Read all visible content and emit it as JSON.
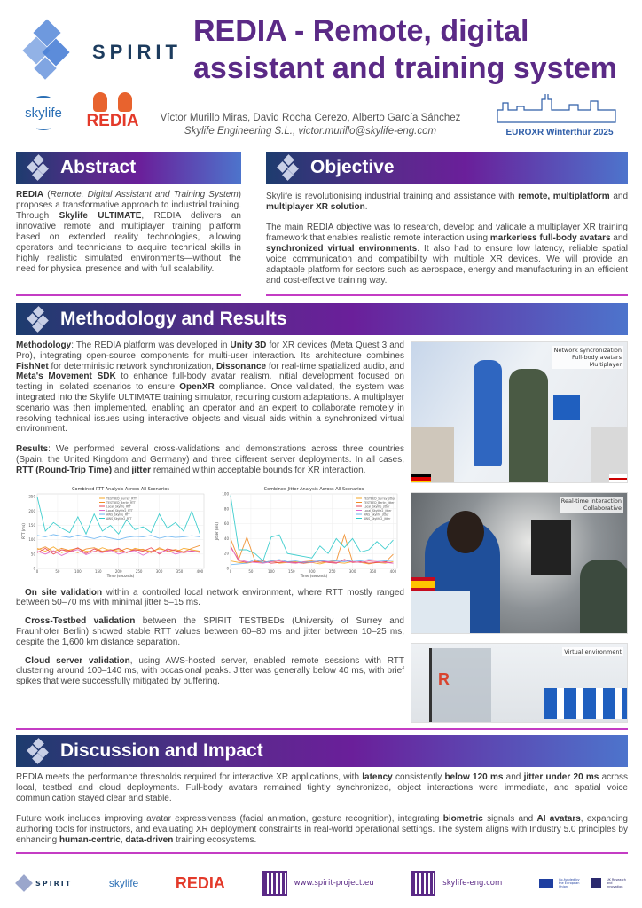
{
  "header": {
    "title": "REDIA - Remote, digital assistant and training system",
    "authors": "Víctor Murillo Miras, David Rocha Cerezo, Alberto García Sánchez",
    "affiliation": "Skylife Engineering S.L., victor.murillo@skylife-eng.com",
    "logos": {
      "spirit": "SPIRIT",
      "skylife": "skylife",
      "redia": "REDIA",
      "euroxr": "EUROXR Winterthur 2025"
    }
  },
  "colors": {
    "title": "#5b2a86",
    "accent_rule": "#c43cc4",
    "bar_start": "#1d3c6e",
    "bar_mid": "#6a1f9a",
    "bar_end": "#4d74cc"
  },
  "abstract": {
    "heading": "Abstract",
    "paragraphs": [
      [
        {
          "t": "REDIA",
          "b": true
        },
        {
          "t": " ("
        },
        {
          "t": "Remote, Digital Assistant and Training System",
          "i": true
        },
        {
          "t": ") proposes a transformative approach to industrial training. Through "
        },
        {
          "t": "Skylife ULTIMATE",
          "b": true
        },
        {
          "t": ", REDIA delivers an innovative remote and multiplayer training platform based on extended reality technologies, allowing operators and technicians to acquire technical skills in highly realistic simulated environments—without the need for physical presence and with full scalability."
        }
      ]
    ]
  },
  "objective": {
    "heading": "Objective",
    "paragraphs": [
      [
        {
          "t": "Skylife is revolutionising industrial training and assistance with "
        },
        {
          "t": "remote, multiplatform",
          "b": true
        },
        {
          "t": " and "
        },
        {
          "t": "multiplayer XR solution",
          "b": true
        },
        {
          "t": "."
        }
      ],
      [
        {
          "t": "The main REDIA objective was to research, develop and validate a multiplayer XR training framework that enables realistic remote interaction using "
        },
        {
          "t": "markerless full-body avatars",
          "b": true
        },
        {
          "t": " and "
        },
        {
          "t": "synchronized virtual environments",
          "b": true
        },
        {
          "t": ". It also had to ensure low latency, reliable spatial voice communication and compatibility with multiple XR devices. We will provide an adaptable platform for sectors such as aerospace, energy and manufacturing in an efficient and cost-effective training way."
        }
      ]
    ]
  },
  "methodology": {
    "heading": "Methodology and Results",
    "paragraphs": [
      [
        {
          "t": "Methodology",
          "b": true
        },
        {
          "t": ": The REDIA platform was developed in "
        },
        {
          "t": "Unity 3D",
          "b": true
        },
        {
          "t": " for XR devices (Meta Quest 3 and Pro), integrating open-source components for multi-user interaction. Its architecture combines "
        },
        {
          "t": "FishNet",
          "b": true
        },
        {
          "t": " for deterministic network synchronization, "
        },
        {
          "t": "Dissonance",
          "b": true
        },
        {
          "t": " for real-time spatialized audio, and "
        },
        {
          "t": "Meta's Movement SDK",
          "b": true
        },
        {
          "t": " to enhance full-body avatar realism. Initial development focused on testing in isolated scenarios to ensure "
        },
        {
          "t": "OpenXR",
          "b": true
        },
        {
          "t": " compliance. Once validated, the system was integrated into the Skylife ULTIMATE training simulator, requiring custom adaptations. A multiplayer scenario was then implemented, enabling an operator and an expert to collaborate remotely in resolving technical issues using interactive objects and visual aids within a synchronized virtual environment."
        }
      ],
      [
        {
          "t": "Results",
          "b": true
        },
        {
          "t": ": We performed several cross-validations and demonstrations across three countries (Spain, the United Kingdom and Germany) and three different server deployments. In all cases, "
        },
        {
          "t": "RTT (Round-Trip Time)",
          "b": true
        },
        {
          "t": " and "
        },
        {
          "t": "jitter",
          "b": true
        },
        {
          "t": " remained within acceptable bounds for XR interaction."
        }
      ]
    ],
    "validations": [
      [
        {
          "t": "On site validation",
          "b": true
        },
        {
          "t": " within a controlled local network environment, where RTT mostly ranged between 50–70 ms with minimal jitter 5–15 ms."
        }
      ],
      [
        {
          "t": "Cross-Testbed validation",
          "b": true
        },
        {
          "t": " between the SPIRIT TESTBEDs (University of Surrey and Fraunhofer Berlin) showed stable RTT values between 60–80 ms and jitter between 10–25 ms, despite the 1,600 km distance separation."
        }
      ],
      [
        {
          "t": "Cloud server validation",
          "b": true
        },
        {
          "t": ", using AWS-hosted server, enabled remote sessions with RTT clustering around 100–140 ms, with occasional peaks. Jitter was generally below 40 ms, with brief spikes that were successfully mitigated by buffering."
        }
      ]
    ],
    "photos": [
      {
        "caption": [
          "Network syncronization",
          "Full-body avatars",
          "Multiplayer"
        ],
        "flags": [
          "germany-flag",
          "uk-flag"
        ]
      },
      {
        "caption": [
          "Real-time interaction",
          "Collaborative"
        ],
        "flags": [
          "spain-flag"
        ]
      },
      {
        "caption": [
          "Virtual environment"
        ],
        "flags": []
      }
    ]
  },
  "chart_data": [
    {
      "type": "line",
      "title": "Combined RTT Analysis Across All Scenarios",
      "xlabel": "Time (seconds)",
      "ylabel": "RTT (ms)",
      "xlim": [
        0,
        410
      ],
      "ylim": [
        0,
        260
      ],
      "xticks": [
        0,
        50,
        100,
        150,
        200,
        250,
        300,
        350,
        400
      ],
      "yticks": [
        0,
        50,
        100,
        150,
        200,
        250
      ],
      "grid": true,
      "legend": "top-center",
      "x": [
        0,
        20,
        40,
        60,
        80,
        100,
        120,
        140,
        160,
        180,
        200,
        220,
        240,
        260,
        280,
        300,
        320,
        340,
        360,
        380,
        400
      ],
      "series": [
        {
          "name": "TESTBED_Surrey_RTT",
          "color": "#f5a623",
          "values": [
            70,
            60,
            75,
            55,
            65,
            70,
            60,
            58,
            72,
            62,
            66,
            55,
            70,
            64,
            60,
            68,
            62,
            57,
            70,
            65,
            60
          ]
        },
        {
          "name": "TESTBED_Berlin_RTT",
          "color": "#f08a24",
          "values": [
            65,
            75,
            58,
            70,
            62,
            55,
            68,
            72,
            60,
            66,
            58,
            70,
            63,
            67,
            55,
            72,
            60,
            66,
            58,
            70,
            80
          ]
        },
        {
          "name": "Local_Skylife_RTT",
          "color": "#e8414f",
          "values": [
            55,
            70,
            50,
            65,
            60,
            72,
            52,
            68,
            58,
            62,
            70,
            55,
            66,
            60,
            72,
            50,
            68,
            62,
            55,
            60,
            58
          ]
        },
        {
          "name": "Local_Skylife2_RTT",
          "color": "#e066c8",
          "values": [
            60,
            50,
            62,
            45,
            58,
            66,
            48,
            60,
            55,
            64,
            50,
            58,
            62,
            46,
            60,
            55,
            64,
            50,
            58,
            62,
            55
          ]
        },
        {
          "name": "AWS_Skylife_RTT",
          "color": "#6ab4f0",
          "values": [
            115,
            110,
            118,
            112,
            108,
            116,
            110,
            104,
            112,
            106,
            100,
            108,
            112,
            110,
            115,
            105,
            112,
            108,
            110,
            114,
            110
          ]
        },
        {
          "name": "AWS_Skylife2_RTT",
          "color": "#2cc9c9",
          "values": [
            250,
            130,
            160,
            140,
            125,
            180,
            120,
            190,
            130,
            150,
            120,
            170,
            135,
            145,
            125,
            190,
            140,
            160,
            130,
            200,
            120
          ]
        }
      ]
    },
    {
      "type": "line",
      "title": "Combined Jitter Analysis Across All Scenarios",
      "xlabel": "Time (seconds)",
      "ylabel": "Jitter (ms)",
      "xlim": [
        0,
        410
      ],
      "ylim": [
        0,
        100
      ],
      "xticks": [
        0,
        50,
        100,
        150,
        200,
        250,
        300,
        350,
        400
      ],
      "yticks": [
        0,
        20,
        40,
        60,
        80,
        100
      ],
      "grid": true,
      "legend": "top-right",
      "x": [
        0,
        20,
        40,
        60,
        80,
        100,
        120,
        140,
        160,
        180,
        200,
        220,
        240,
        260,
        280,
        300,
        320,
        340,
        360,
        380,
        400
      ],
      "series": [
        {
          "name": "TESTBED_Surrey_jitter",
          "color": "#f5a623",
          "values": [
            10,
            8,
            7,
            9,
            8,
            10,
            7,
            8,
            9,
            7,
            8,
            6,
            9,
            8,
            7,
            9,
            8,
            6,
            8,
            7,
            9
          ]
        },
        {
          "name": "TESTBED_Berlin_jitter",
          "color": "#f08a24",
          "values": [
            40,
            12,
            42,
            10,
            8,
            9,
            10,
            8,
            7,
            9,
            10,
            8,
            9,
            10,
            45,
            9,
            8,
            10,
            9,
            8,
            19
          ]
        },
        {
          "name": "Local_Skylife_jitter",
          "color": "#e8414f",
          "values": [
            30,
            10,
            8,
            9,
            10,
            7,
            8,
            9,
            8,
            7,
            9,
            10,
            8,
            7,
            12,
            8,
            9,
            7,
            8,
            9,
            7
          ]
        },
        {
          "name": "Local_Skylife2_jitter",
          "color": "#e066c8",
          "values": [
            28,
            12,
            9,
            8,
            7,
            9,
            10,
            8,
            7,
            9,
            8,
            10,
            9,
            8,
            10,
            9,
            8,
            10,
            9,
            8,
            7
          ]
        },
        {
          "name": "AWS_Skylife_jitter",
          "color": "#6ab4f0",
          "values": [
            5,
            6,
            7,
            12,
            8,
            10,
            12,
            9,
            10,
            8,
            9,
            10,
            11,
            10,
            9,
            11,
            10,
            12,
            11,
            10,
            11
          ]
        },
        {
          "name": "AWS_Skylife2_jitter",
          "color": "#2cc9c9",
          "values": [
            98,
            25,
            25,
            20,
            10,
            42,
            45,
            20,
            18,
            16,
            14,
            30,
            20,
            40,
            28,
            40,
            22,
            25,
            36,
            26,
            38
          ]
        }
      ]
    }
  ],
  "discussion": {
    "heading": "Discussion and Impact",
    "paragraphs": [
      [
        {
          "t": "REDIA meets the performance thresholds required for interactive XR applications, with "
        },
        {
          "t": "latency",
          "b": true
        },
        {
          "t": " consistently "
        },
        {
          "t": "below 120 ms",
          "b": true
        },
        {
          "t": " and "
        },
        {
          "t": "jitter under 20 ms",
          "b": true
        },
        {
          "t": " across local, testbed and cloud deployments. Full-body avatars remained tightly synchronized, object interactions were immediate, and spatial voice communication stayed clear and stable."
        }
      ],
      [
        {
          "t": "Future work includes improving avatar expressiveness (facial animation, gesture recognition), integrating "
        },
        {
          "t": "biometric",
          "b": true
        },
        {
          "t": " signals and "
        },
        {
          "t": "AI avatars",
          "b": true
        },
        {
          "t": ", expanding authoring tools for instructors, and evaluating XR deployment constraints in real-world operational settings. The system aligns with Industry 5.0 principles by enhancing "
        },
        {
          "t": "human-centric",
          "b": true
        },
        {
          "t": ", "
        },
        {
          "t": "data-driven",
          "b": true
        },
        {
          "t": " training ecosystems."
        }
      ]
    ]
  },
  "footer": {
    "spirit": "SPIRIT",
    "skylife": "skylife",
    "redia": "REDIA",
    "url1": "www.spirit-project.eu",
    "url2": "skylife-eng.com",
    "eu": "Co-funded by the European Union",
    "ukri": "UK Research and Innovation"
  }
}
